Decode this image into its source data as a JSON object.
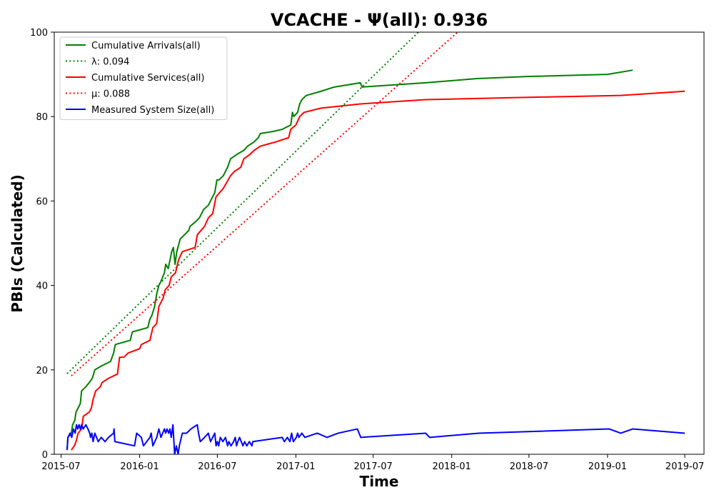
{
  "chart_data": {
    "type": "line",
    "title": "VCACHE -  Ψ(all): 0.936",
    "xlabel": "Time",
    "ylabel": "PBIs (Calculated)",
    "x_tick_labels": [
      "2015-07",
      "2016-01",
      "2016-07",
      "2017-01",
      "2017-07",
      "2018-01",
      "2018-07",
      "2019-01",
      "2019-07"
    ],
    "xlim": [
      "2015-06-15",
      "2019-08-15"
    ],
    "ylim": [
      0,
      100
    ],
    "y_ticks": [
      0,
      20,
      40,
      60,
      80,
      100
    ],
    "grid": false,
    "legend_placement": "upper-left",
    "series": [
      {
        "name": "Cumulative Arrivals(all)",
        "color": "#008000",
        "style": "solid",
        "points": [
          [
            "2015-07-15",
            1
          ],
          [
            "2015-07-17",
            4
          ],
          [
            "2015-07-25",
            5
          ],
          [
            "2015-07-28",
            7
          ],
          [
            "2015-08-02",
            8
          ],
          [
            "2015-08-05",
            10
          ],
          [
            "2015-08-10",
            11
          ],
          [
            "2015-08-15",
            12
          ],
          [
            "2015-08-18",
            15
          ],
          [
            "2015-08-28",
            16
          ],
          [
            "2015-09-05",
            17
          ],
          [
            "2015-09-12",
            18
          ],
          [
            "2015-09-18",
            20
          ],
          [
            "2015-10-05",
            21
          ],
          [
            "2015-10-25",
            22
          ],
          [
            "2015-11-01",
            24
          ],
          [
            "2015-11-05",
            26
          ],
          [
            "2015-12-10",
            27
          ],
          [
            "2015-12-15",
            29
          ],
          [
            "2016-01-20",
            30
          ],
          [
            "2016-01-25",
            32
          ],
          [
            "2016-01-30",
            33
          ],
          [
            "2016-02-05",
            35
          ],
          [
            "2016-02-10",
            38
          ],
          [
            "2016-02-15",
            40
          ],
          [
            "2016-02-20",
            41
          ],
          [
            "2016-02-28",
            43
          ],
          [
            "2016-03-02",
            45
          ],
          [
            "2016-03-08",
            44
          ],
          [
            "2016-03-12",
            46
          ],
          [
            "2016-03-16",
            48
          ],
          [
            "2016-03-20",
            49
          ],
          [
            "2016-03-24",
            45
          ],
          [
            "2016-03-28",
            48
          ],
          [
            "2016-04-05",
            51
          ],
          [
            "2016-04-15",
            52
          ],
          [
            "2016-04-25",
            53
          ],
          [
            "2016-04-28",
            54
          ],
          [
            "2016-05-10",
            55
          ],
          [
            "2016-05-20",
            56
          ],
          [
            "2016-05-30",
            58
          ],
          [
            "2016-06-10",
            59
          ],
          [
            "2016-06-25",
            62
          ],
          [
            "2016-06-30",
            65
          ],
          [
            "2016-07-05",
            65
          ],
          [
            "2016-07-15",
            66
          ],
          [
            "2016-07-25",
            68
          ],
          [
            "2016-08-01",
            70
          ],
          [
            "2016-08-15",
            71
          ],
          [
            "2016-09-01",
            72
          ],
          [
            "2016-09-10",
            73
          ],
          [
            "2016-09-25",
            74
          ],
          [
            "2016-10-05",
            75
          ],
          [
            "2016-10-10",
            76
          ],
          [
            "2016-11-10",
            76.5
          ],
          [
            "2016-12-01",
            77
          ],
          [
            "2016-12-10",
            77.5
          ],
          [
            "2016-12-20",
            78
          ],
          [
            "2016-12-24",
            81
          ],
          [
            "2016-12-27",
            80
          ],
          [
            "2017-01-05",
            81
          ],
          [
            "2017-01-10",
            83
          ],
          [
            "2017-01-15",
            84
          ],
          [
            "2017-01-25",
            85
          ],
          [
            "2017-03-01",
            86
          ],
          [
            "2017-04-01",
            87
          ],
          [
            "2017-06-01",
            88
          ],
          [
            "2017-06-05",
            87
          ],
          [
            "2017-11-01",
            88
          ],
          [
            "2018-03-01",
            89
          ],
          [
            "2018-07-01",
            89.5
          ],
          [
            "2019-01-01",
            90
          ],
          [
            "2019-03-01",
            91
          ]
        ]
      },
      {
        "name": "λ: 0.094",
        "color": "#008000",
        "style": "dotted",
        "points": [
          [
            "2015-07-15",
            19.1
          ],
          [
            "2017-10-15",
            100
          ]
        ]
      },
      {
        "name": "Cumulative Services(all)",
        "color": "#ff0000",
        "style": "solid",
        "points": [
          [
            "2015-07-25",
            1
          ],
          [
            "2015-08-01",
            2
          ],
          [
            "2015-08-05",
            3
          ],
          [
            "2015-08-10",
            5
          ],
          [
            "2015-08-18",
            6
          ],
          [
            "2015-08-22",
            9
          ],
          [
            "2015-09-05",
            10
          ],
          [
            "2015-09-10",
            11
          ],
          [
            "2015-09-14",
            13
          ],
          [
            "2015-09-20",
            15
          ],
          [
            "2015-10-01",
            16
          ],
          [
            "2015-10-05",
            17
          ],
          [
            "2015-10-20",
            18
          ],
          [
            "2015-11-10",
            19
          ],
          [
            "2015-11-15",
            23
          ],
          [
            "2015-11-25",
            23
          ],
          [
            "2015-12-05",
            24
          ],
          [
            "2016-01-01",
            25
          ],
          [
            "2016-01-05",
            26
          ],
          [
            "2016-01-25",
            27
          ],
          [
            "2016-02-01",
            30
          ],
          [
            "2016-02-10",
            31
          ],
          [
            "2016-02-15",
            35
          ],
          [
            "2016-02-25",
            37
          ],
          [
            "2016-03-01",
            39
          ],
          [
            "2016-03-10",
            40
          ],
          [
            "2016-03-15",
            42
          ],
          [
            "2016-03-25",
            43
          ],
          [
            "2016-04-01",
            46
          ],
          [
            "2016-04-10",
            48
          ],
          [
            "2016-05-10",
            49
          ],
          [
            "2016-05-15",
            52
          ],
          [
            "2016-06-01",
            54
          ],
          [
            "2016-06-10",
            56
          ],
          [
            "2016-06-20",
            57
          ],
          [
            "2016-06-28",
            61
          ],
          [
            "2016-07-15",
            63
          ],
          [
            "2016-08-01",
            66
          ],
          [
            "2016-08-10",
            67
          ],
          [
            "2016-08-25",
            68
          ],
          [
            "2016-09-01",
            70
          ],
          [
            "2016-09-15",
            71
          ],
          [
            "2016-09-25",
            72
          ],
          [
            "2016-10-10",
            73
          ],
          [
            "2016-11-15",
            74
          ],
          [
            "2016-12-15",
            75
          ],
          [
            "2016-12-20",
            77
          ],
          [
            "2017-01-01",
            78
          ],
          [
            "2017-01-10",
            80
          ],
          [
            "2017-01-20",
            81
          ],
          [
            "2017-03-01",
            82
          ],
          [
            "2017-06-01",
            83
          ],
          [
            "2017-11-01",
            84
          ],
          [
            "2018-06-01",
            84.5
          ],
          [
            "2019-02-01",
            85
          ],
          [
            "2019-07-01",
            86
          ]
        ]
      },
      {
        "name": "μ: 0.088",
        "color": "#ff0000",
        "style": "dotted",
        "points": [
          [
            "2015-07-25",
            18.6
          ],
          [
            "2018-01-15",
            100
          ]
        ]
      },
      {
        "name": "Measured System Size(all)",
        "color": "#0000ff",
        "style": "solid",
        "points": [
          [
            "2015-07-15",
            1
          ],
          [
            "2015-07-17",
            4
          ],
          [
            "2015-07-22",
            5
          ],
          [
            "2015-07-26",
            4
          ],
          [
            "2015-07-30",
            6
          ],
          [
            "2015-08-03",
            5
          ],
          [
            "2015-08-06",
            7
          ],
          [
            "2015-08-09",
            6
          ],
          [
            "2015-08-12",
            7
          ],
          [
            "2015-08-15",
            6
          ],
          [
            "2015-08-18",
            7
          ],
          [
            "2015-08-22",
            6
          ],
          [
            "2015-08-28",
            7
          ],
          [
            "2015-09-02",
            6
          ],
          [
            "2015-09-06",
            5
          ],
          [
            "2015-09-08",
            4
          ],
          [
            "2015-09-11",
            5
          ],
          [
            "2015-09-14",
            3
          ],
          [
            "2015-09-18",
            5
          ],
          [
            "2015-09-22",
            4
          ],
          [
            "2015-09-26",
            3
          ],
          [
            "2015-10-03",
            4
          ],
          [
            "2015-10-12",
            3
          ],
          [
            "2015-10-20",
            4
          ],
          [
            "2015-11-01",
            5
          ],
          [
            "2015-11-02",
            6
          ],
          [
            "2015-11-04",
            3
          ],
          [
            "2015-12-20",
            2
          ],
          [
            "2015-12-25",
            5
          ],
          [
            "2016-01-05",
            4
          ],
          [
            "2016-01-10",
            2
          ],
          [
            "2016-01-25",
            4
          ],
          [
            "2016-01-28",
            5
          ],
          [
            "2016-02-01",
            2
          ],
          [
            "2016-02-10",
            4
          ],
          [
            "2016-02-15",
            6
          ],
          [
            "2016-02-20",
            4
          ],
          [
            "2016-02-28",
            6
          ],
          [
            "2016-03-02",
            5
          ],
          [
            "2016-03-05",
            6
          ],
          [
            "2016-03-09",
            5
          ],
          [
            "2016-03-12",
            6
          ],
          [
            "2016-03-15",
            4
          ],
          [
            "2016-03-19",
            7
          ],
          [
            "2016-03-23",
            0
          ],
          [
            "2016-03-27",
            2
          ],
          [
            "2016-03-31",
            0
          ],
          [
            "2016-04-03",
            2
          ],
          [
            "2016-04-10",
            5
          ],
          [
            "2016-04-20",
            5
          ],
          [
            "2016-04-30",
            6
          ],
          [
            "2016-05-15",
            7
          ],
          [
            "2016-05-18",
            5
          ],
          [
            "2016-05-22",
            3
          ],
          [
            "2016-06-01",
            4
          ],
          [
            "2016-06-10",
            5
          ],
          [
            "2016-06-15",
            3
          ],
          [
            "2016-06-25",
            5
          ],
          [
            "2016-06-28",
            2
          ],
          [
            "2016-07-01",
            3
          ],
          [
            "2016-07-04",
            2
          ],
          [
            "2016-07-08",
            4
          ],
          [
            "2016-07-14",
            3
          ],
          [
            "2016-07-20",
            4
          ],
          [
            "2016-07-25",
            2
          ],
          [
            "2016-07-28",
            3
          ],
          [
            "2016-08-02",
            2
          ],
          [
            "2016-08-08",
            3
          ],
          [
            "2016-08-12",
            4
          ],
          [
            "2016-08-15",
            2
          ],
          [
            "2016-08-18",
            3
          ],
          [
            "2016-08-22",
            4
          ],
          [
            "2016-08-26",
            3
          ],
          [
            "2016-08-30",
            2
          ],
          [
            "2016-09-03",
            3
          ],
          [
            "2016-09-08",
            2
          ],
          [
            "2016-09-14",
            3
          ],
          [
            "2016-09-20",
            2
          ],
          [
            "2016-09-22",
            3
          ],
          [
            "2016-11-30",
            4
          ],
          [
            "2016-12-05",
            3
          ],
          [
            "2016-12-12",
            4
          ],
          [
            "2016-12-18",
            3
          ],
          [
            "2016-12-22",
            5
          ],
          [
            "2016-12-26",
            3
          ],
          [
            "2017-01-02",
            4
          ],
          [
            "2017-01-05",
            5
          ],
          [
            "2017-01-08",
            4
          ],
          [
            "2017-01-15",
            5
          ],
          [
            "2017-01-22",
            4
          ],
          [
            "2017-02-20",
            5
          ],
          [
            "2017-03-15",
            4
          ],
          [
            "2017-04-10",
            5
          ],
          [
            "2017-05-25",
            6
          ],
          [
            "2017-06-02",
            4
          ],
          [
            "2017-11-01",
            5
          ],
          [
            "2017-11-10",
            4
          ],
          [
            "2018-03-05",
            5
          ],
          [
            "2019-01-05",
            6
          ],
          [
            "2019-02-01",
            5
          ],
          [
            "2019-03-01",
            6
          ],
          [
            "2019-07-01",
            5
          ]
        ]
      }
    ]
  }
}
